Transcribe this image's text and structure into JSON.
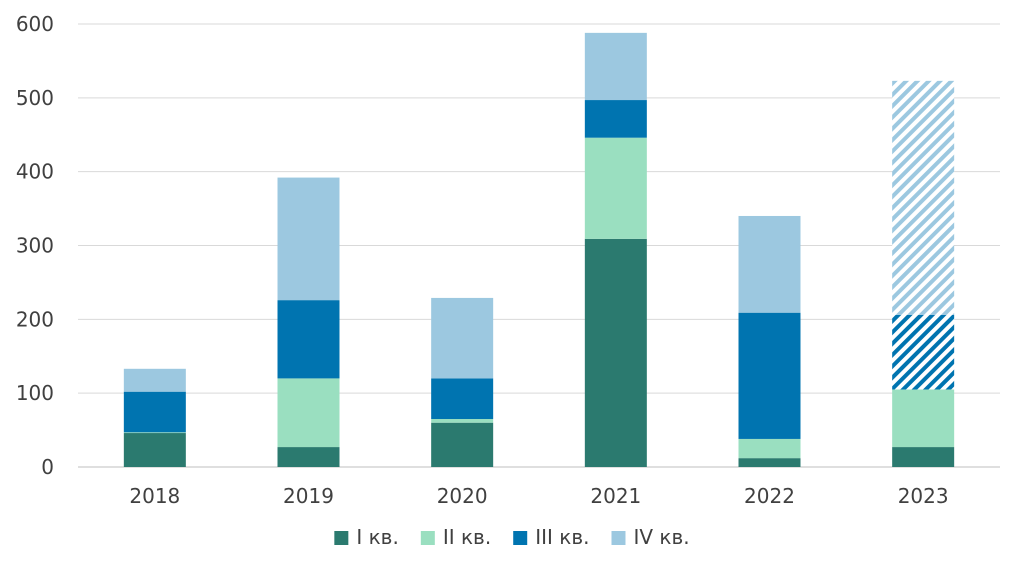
{
  "chart_data": {
    "type": "bar",
    "stacked": true,
    "categories": [
      "2018",
      "2019",
      "2020",
      "2021",
      "2022",
      "2023"
    ],
    "series": [
      {
        "name": "I кв.",
        "color": "#2b7a6f",
        "values": [
          46,
          27,
          60,
          309,
          12,
          27
        ]
      },
      {
        "name": "II кв.",
        "color": "#9adfc0",
        "values": [
          1,
          93,
          5,
          137,
          26,
          78
        ]
      },
      {
        "name": "III кв.",
        "color": "#0074b0",
        "values": [
          55,
          106,
          55,
          51,
          171,
          101
        ]
      },
      {
        "name": "IV кв.",
        "color": "#9cc8e0",
        "values": [
          31,
          166,
          109,
          91,
          131,
          317
        ]
      }
    ],
    "hatched": [
      {
        "category": "2023",
        "series": "III кв."
      },
      {
        "category": "2023",
        "series": "IV кв."
      }
    ],
    "ylim": [
      0,
      600
    ],
    "yticks": [
      0,
      100,
      200,
      300,
      400,
      500,
      600
    ],
    "grid": true,
    "legend_position": "bottom",
    "title": "",
    "xlabel": "",
    "ylabel": ""
  }
}
